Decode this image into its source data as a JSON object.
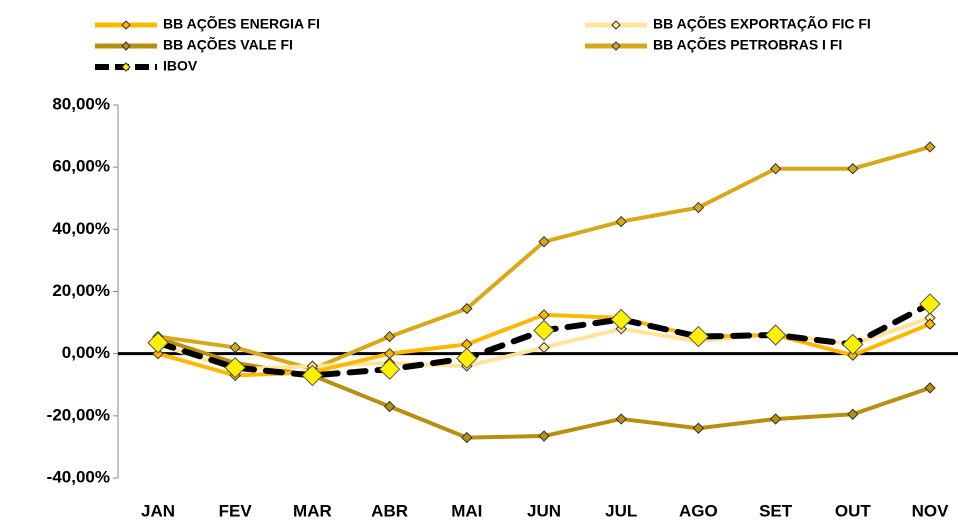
{
  "chart_data": {
    "type": "line",
    "categories": [
      "JAN",
      "FEV",
      "MAR",
      "ABR",
      "MAI",
      "JUN",
      "JUL",
      "AGO",
      "SET",
      "OUT",
      "NOV"
    ],
    "series": [
      {
        "name": "BB AÇÕES ENERGIA FI",
        "color": "#FFB800",
        "values": [
          0,
          -7,
          -6,
          0,
          3,
          12.5,
          11.5,
          5.5,
          6,
          -0.5,
          9.5
        ]
      },
      {
        "name": "BB AÇÕES EXPORTAÇÃO FIC FI",
        "color": "#FFE49A",
        "values": [
          3,
          -5,
          -4,
          -3,
          -4,
          2,
          8,
          4,
          6.5,
          3,
          11.5
        ]
      },
      {
        "name": "BB AÇÕES VALE FI",
        "color": "#B8900F",
        "values": [
          5,
          -3,
          -7,
          -17,
          -27,
          -26.5,
          -21,
          -24,
          -21,
          -19.5,
          -11
        ]
      },
      {
        "name": "BB AÇÕES PETROBRAS I FI",
        "color": "#D9A81A",
        "values": [
          5.5,
          2,
          -5,
          5.5,
          14.5,
          36,
          42.5,
          47,
          59.5,
          59.5,
          66.5
        ]
      },
      {
        "name": "IBOV",
        "color": "#000000",
        "values": [
          3.5,
          -4.5,
          -7,
          -5,
          -1.5,
          7.5,
          11,
          5.5,
          6,
          3,
          16
        ]
      }
    ],
    "ylim": [
      -40,
      80
    ],
    "yticks": [
      {
        "value": -40,
        "label": "-40,00%"
      },
      {
        "value": -20,
        "label": "-20,00%"
      },
      {
        "value": 0,
        "label": "0,00%"
      },
      {
        "value": 20,
        "label": "20,00%"
      },
      {
        "value": 40,
        "label": "40,00%"
      },
      {
        "value": 60,
        "label": "60,00%"
      },
      {
        "value": 80,
        "label": "80,00%"
      }
    ]
  }
}
